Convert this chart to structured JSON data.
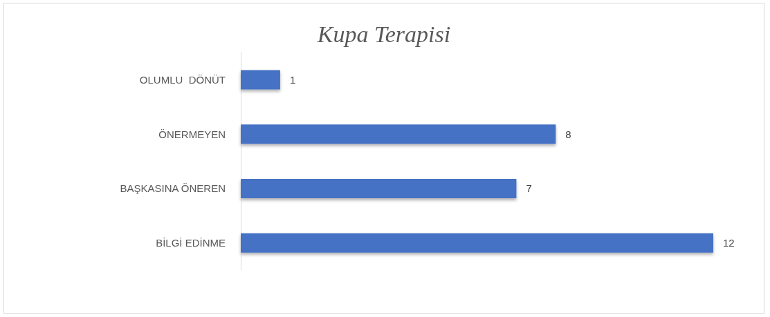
{
  "chart_data": {
    "type": "bar",
    "title": "Kupa Terapisi",
    "orientation": "horizontal",
    "categories": [
      "OLUMLU  DÖNÜT",
      "ÖNERMEYEN",
      "BAŞKASINA ÖNEREN",
      "BİLGİ EDİNME"
    ],
    "values": [
      1,
      8,
      7,
      12
    ],
    "color": "#4472c4",
    "data_labels": true
  }
}
